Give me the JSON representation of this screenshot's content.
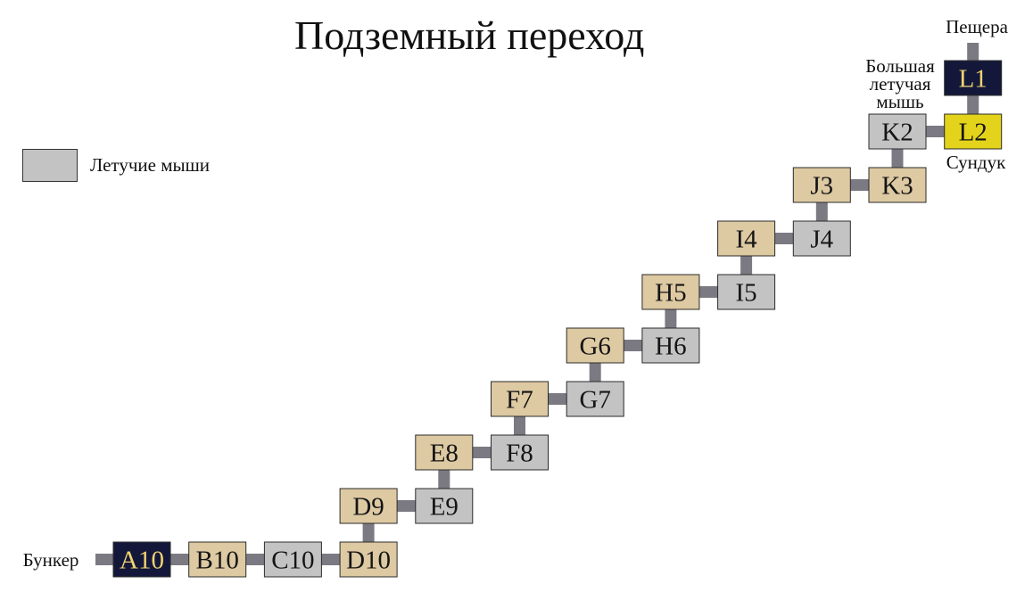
{
  "title": "Подземный переход",
  "legend": {
    "bats_label": "Летучие мыши",
    "bats_color": "#c3c3c3"
  },
  "annotations": {
    "cave": "Пещера",
    "bunker": "Бункер",
    "chest": "Сундук",
    "big_bat": [
      "Большая",
      "летучая",
      "мышь"
    ]
  },
  "colors": {
    "room": "#ddc9a2",
    "bats": "#c3c3c3",
    "special": "#13183a",
    "special_text": "#f0d370",
    "chest": "#e3d31a",
    "connector": "#7b7a83"
  },
  "rooms": [
    {
      "id": "L1",
      "type": "special"
    },
    {
      "id": "L2",
      "type": "chest"
    },
    {
      "id": "K2",
      "type": "bats"
    },
    {
      "id": "K3",
      "type": "room"
    },
    {
      "id": "J3",
      "type": "room"
    },
    {
      "id": "J4",
      "type": "bats"
    },
    {
      "id": "I4",
      "type": "room"
    },
    {
      "id": "I5",
      "type": "bats"
    },
    {
      "id": "H5",
      "type": "room"
    },
    {
      "id": "H6",
      "type": "bats"
    },
    {
      "id": "G6",
      "type": "room"
    },
    {
      "id": "G7",
      "type": "bats"
    },
    {
      "id": "F7",
      "type": "room"
    },
    {
      "id": "F8",
      "type": "bats"
    },
    {
      "id": "E8",
      "type": "room"
    },
    {
      "id": "E9",
      "type": "bats"
    },
    {
      "id": "D9",
      "type": "room"
    },
    {
      "id": "D10",
      "type": "room"
    },
    {
      "id": "C10",
      "type": "bats"
    },
    {
      "id": "B10",
      "type": "room"
    },
    {
      "id": "A10",
      "type": "special"
    }
  ],
  "connections": [
    [
      "A10",
      "B10"
    ],
    [
      "B10",
      "C10"
    ],
    [
      "C10",
      "D10"
    ],
    [
      "D10",
      "D9"
    ],
    [
      "D9",
      "E9"
    ],
    [
      "E9",
      "E8"
    ],
    [
      "E8",
      "F8"
    ],
    [
      "F8",
      "F7"
    ],
    [
      "F7",
      "G7"
    ],
    [
      "G7",
      "G6"
    ],
    [
      "G6",
      "H6"
    ],
    [
      "H6",
      "H5"
    ],
    [
      "H5",
      "I5"
    ],
    [
      "I5",
      "I4"
    ],
    [
      "I4",
      "J4"
    ],
    [
      "J4",
      "J3"
    ],
    [
      "J3",
      "K3"
    ],
    [
      "K3",
      "K2"
    ],
    [
      "K2",
      "L2"
    ],
    [
      "L2",
      "L1"
    ]
  ]
}
